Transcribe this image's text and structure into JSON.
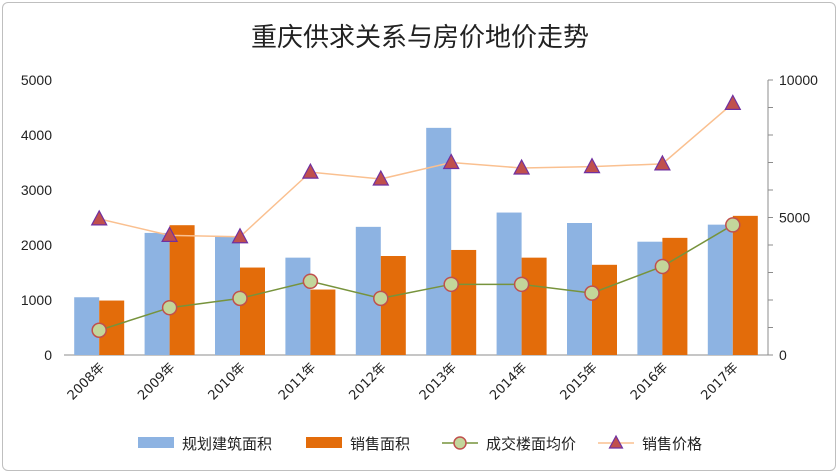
{
  "chart_data": {
    "type": "bar",
    "title": "重庆供求关系与房价地价走势",
    "categories": [
      "2008年",
      "2009年",
      "2010年",
      "2011年",
      "2012年",
      "2013年",
      "2014年",
      "2015年",
      "2016年",
      "2017年"
    ],
    "y_left": {
      "ticks": [
        "0",
        "1000",
        "2000",
        "3000",
        "4000",
        "5000"
      ],
      "ylim": [
        0,
        5000
      ]
    },
    "y_right": {
      "ticks": [
        "0",
        "5000",
        "10000"
      ],
      "ylim": [
        0,
        10000
      ]
    },
    "series": [
      {
        "name": "规划建筑面积",
        "type": "bar",
        "axis": "left",
        "color": "#8db3e2",
        "values": [
          1050,
          2220,
          2150,
          1770,
          2330,
          4130,
          2590,
          2400,
          2060,
          2370
        ]
      },
      {
        "name": "销售面积",
        "type": "bar",
        "axis": "left",
        "color": "#e36c0a",
        "values": [
          990,
          2360,
          1590,
          1190,
          1800,
          1910,
          1770,
          1640,
          2130,
          2530
        ]
      },
      {
        "name": "成交楼面均价",
        "type": "line",
        "axis": "right",
        "color": "#77933c",
        "marker": "circle",
        "values": [
          900,
          1720,
          2060,
          2680,
          2060,
          2570,
          2570,
          2250,
          3220,
          4730
        ]
      },
      {
        "name": "销售价格",
        "type": "line",
        "axis": "right",
        "color": "#fac090",
        "marker": "triangle",
        "values": [
          4950,
          4350,
          4300,
          6650,
          6400,
          7000,
          6800,
          6850,
          6950,
          9150
        ]
      }
    ],
    "grid": false,
    "legend_position": "bottom"
  }
}
